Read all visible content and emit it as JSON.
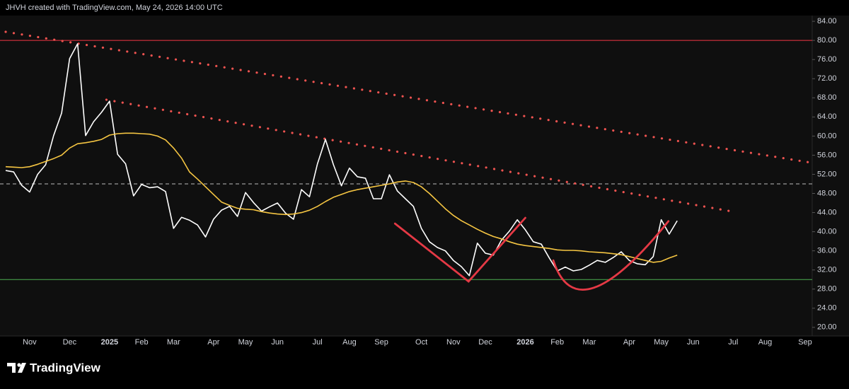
{
  "header": "JHVH created with TradingView.com, May 24, 2026 14:00 UTC",
  "brand": "TradingView",
  "chart_data": {
    "type": "line",
    "categories": [
      null,
      null,
      null,
      "Nov",
      null,
      null,
      null,
      null,
      "Dec",
      null,
      null,
      null,
      null,
      "2025",
      null,
      null,
      null,
      "Feb",
      null,
      null,
      null,
      "Mar",
      null,
      null,
      null,
      null,
      "Apr",
      null,
      null,
      null,
      "May",
      null,
      null,
      null,
      "Jun",
      null,
      null,
      null,
      null,
      "Jul",
      null,
      null,
      null,
      "Aug",
      null,
      null,
      null,
      "Sep",
      null,
      null,
      null,
      null,
      "Oct",
      null,
      null,
      null,
      "Nov",
      null,
      null,
      null,
      "Dec",
      null,
      null,
      null,
      null,
      "2026",
      null,
      null,
      null,
      "Feb",
      null,
      null,
      null,
      "Mar",
      null,
      null,
      null,
      null,
      "Apr",
      null,
      null,
      null,
      "May",
      null,
      null,
      null,
      "Jun",
      null,
      null,
      null,
      null,
      "Jul",
      null,
      null,
      null,
      "Aug",
      null,
      null,
      null,
      null,
      "Sep"
    ],
    "series": [
      {
        "color": "#ffffff",
        "values": [
          52.8,
          52.5,
          49.7,
          48.3,
          52.0,
          54.0,
          60.1,
          64.8,
          76.2,
          79.3,
          60.1,
          63.0,
          65.0,
          67.3,
          56.2,
          54.2,
          47.5,
          49.9,
          49.2,
          49.4,
          48.4,
          40.7,
          43.0,
          42.4,
          41.4,
          38.9,
          42.6,
          44.5,
          45.3,
          43.2,
          48.2,
          46.1,
          44.3,
          45.2,
          46.0,
          43.9,
          42.6,
          48.8,
          47.3,
          54.2,
          59.3,
          54.0,
          49.6,
          53.3,
          51.5,
          51.2,
          46.9,
          46.9,
          51.9,
          48.5,
          46.9,
          45.3,
          40.7,
          37.9,
          36.7,
          36.0,
          34.0,
          32.7,
          30.8,
          37.6,
          35.5,
          35.1,
          38.2,
          40.1,
          42.5,
          40.4,
          37.9,
          37.4,
          34.5,
          31.8,
          32.6,
          31.8,
          32.1,
          33.0,
          34.0,
          33.6,
          34.6,
          35.8,
          34.0,
          33.3,
          33.1,
          34.8,
          42.5,
          39.5,
          42.3,
          null,
          null,
          null,
          null,
          null,
          null,
          null,
          null,
          null,
          null,
          null,
          null,
          null,
          null,
          null,
          null
        ]
      },
      {
        "color": "#f5c542",
        "values": [
          53.6,
          53.5,
          53.4,
          53.6,
          54.1,
          54.7,
          55.3,
          56.0,
          57.5,
          58.4,
          58.6,
          58.9,
          59.3,
          60.2,
          60.5,
          60.6,
          60.6,
          60.5,
          60.4,
          60.0,
          59.2,
          57.5,
          55.4,
          52.5,
          51.0,
          49.4,
          47.8,
          46.2,
          45.5,
          44.9,
          44.7,
          44.6,
          44.2,
          43.9,
          43.7,
          43.6,
          43.7,
          44.0,
          44.5,
          45.3,
          46.3,
          47.2,
          47.8,
          48.4,
          48.8,
          49.1,
          49.4,
          49.7,
          50.0,
          50.4,
          50.6,
          50.3,
          49.4,
          48.0,
          46.4,
          44.8,
          43.4,
          42.3,
          41.4,
          40.5,
          39.7,
          39.0,
          38.5,
          37.9,
          37.4,
          37.1,
          36.9,
          36.7,
          36.5,
          36.2,
          36.1,
          36.1,
          36.0,
          35.8,
          35.7,
          35.6,
          35.4,
          35.2,
          34.8,
          34.4,
          34.0,
          33.6,
          33.8,
          34.5,
          35.1,
          null,
          null,
          null,
          null,
          null,
          null,
          null,
          null,
          null,
          null,
          null,
          null,
          null,
          null,
          null,
          null
        ]
      }
    ],
    "ylim": [
      18.2,
      85.2
    ],
    "yticks": [
      {
        "value": 84,
        "label": "84.00"
      },
      {
        "value": 80,
        "label": "80.00"
      },
      {
        "value": 76,
        "label": "76.00"
      },
      {
        "value": 72,
        "label": "72.00"
      },
      {
        "value": 68,
        "label": "68.00"
      },
      {
        "value": 64,
        "label": "64.00"
      },
      {
        "value": 60,
        "label": "60.00"
      },
      {
        "value": 56,
        "label": "56.00"
      },
      {
        "value": 52,
        "label": "52.00"
      },
      {
        "value": 48,
        "label": "48.00"
      },
      {
        "value": 44,
        "label": "44.00"
      },
      {
        "value": 40,
        "label": "40.00"
      },
      {
        "value": 36,
        "label": "36.00"
      },
      {
        "value": 32,
        "label": "32.00"
      },
      {
        "value": 28,
        "label": "28.00"
      },
      {
        "value": 24,
        "label": "24.00"
      },
      {
        "value": 20,
        "label": "20.00"
      }
    ],
    "hlines": [
      {
        "value": 80,
        "color": "#f23645",
        "style": "solid"
      },
      {
        "value": 50,
        "color": "#bdbdbd",
        "style": "dashed"
      },
      {
        "value": 30,
        "color": "#4caf50",
        "style": "solid"
      }
    ],
    "drawings": [
      {
        "kind": "dotted",
        "color": "#ef5350",
        "points": [
          [
            0,
            81.8
          ],
          [
            100.9,
            54.4
          ]
        ]
      },
      {
        "kind": "dotted",
        "color": "#ef5350",
        "points": [
          [
            12.6,
            67.6
          ],
          [
            91.3,
            44.1
          ]
        ]
      },
      {
        "kind": "polyline",
        "color": "#e53945",
        "points": [
          [
            48.7,
            41.7
          ],
          [
            57.9,
            29.6
          ],
          [
            65.0,
            42.9
          ]
        ]
      },
      {
        "kind": "curve",
        "color": "#e53945",
        "points": [
          [
            68.5,
            34.0
          ],
          [
            73.6,
            28.3
          ],
          [
            82.9,
            42.2
          ]
        ]
      }
    ]
  }
}
